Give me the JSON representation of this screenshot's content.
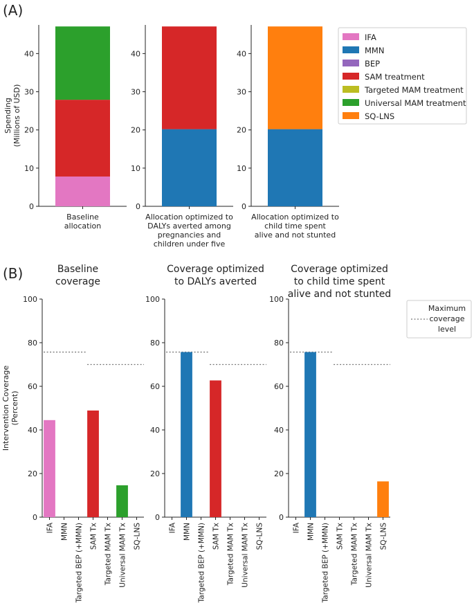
{
  "figure": {
    "panel_a_letter": "(A)",
    "panel_b_letter": "(B)"
  },
  "colors": {
    "IFA": "#e377c2",
    "MMN": "#1f77b4",
    "BEP": "#9467bd",
    "SAM treatment": "#d62728",
    "Targeted MAM treatment": "#bcbd22",
    "Universal MAM treatment": "#2ca02c",
    "SQ-LNS": "#ff7f0e"
  },
  "chart_data": [
    {
      "type": "bar",
      "stacked": true,
      "panel": "A",
      "ylabel": [
        "Spending",
        "(Millions of USD)"
      ],
      "ylim": [
        0,
        47.5
      ],
      "yticks": [
        0,
        10,
        20,
        30,
        40
      ],
      "legend": [
        "IFA",
        "MMN",
        "BEP",
        "SAM treatment",
        "Targeted MAM treatment",
        "Universal MAM treatment",
        "SQ-LNS"
      ],
      "legend_position": "right",
      "subplots": [
        {
          "category_lines": [
            "Baseline",
            "allocation"
          ],
          "segments": [
            {
              "name": "IFA",
              "value": 7.8
            },
            {
              "name": "SAM treatment",
              "value": 20.1
            },
            {
              "name": "Universal MAM treatment",
              "value": 19.2
            }
          ]
        },
        {
          "category_lines": [
            "Allocation optimized to",
            "DALYs averted among",
            "pregnancies and",
            "children under five"
          ],
          "segments": [
            {
              "name": "MMN",
              "value": 20.2
            },
            {
              "name": "SAM treatment",
              "value": 26.9
            }
          ]
        },
        {
          "category_lines": [
            "Allocation optimized to",
            "child time spent",
            "alive and not stunted"
          ],
          "segments": [
            {
              "name": "MMN",
              "value": 20.2
            },
            {
              "name": "SQ-LNS",
              "value": 26.9
            }
          ]
        }
      ]
    },
    {
      "type": "bar",
      "panel": "B",
      "ylabel": [
        "Intervention Coverage",
        "(Percent)"
      ],
      "ylim": [
        0,
        100
      ],
      "yticks": [
        0,
        20,
        40,
        60,
        80,
        100
      ],
      "categories": [
        "IFA",
        "MMN",
        "Targeted BEP (+MMN)",
        "SAM Tx",
        "Targeted MAM Tx",
        "Universal MAM Tx",
        "SQ-LNS"
      ],
      "bar_colors": [
        "IFA",
        "MMN",
        "BEP",
        "SAM treatment",
        "Targeted MAM treatment",
        "Universal MAM treatment",
        "SQ-LNS"
      ],
      "max_coverage": {
        "legend_label": [
          "Maximum",
          "coverage",
          "level"
        ],
        "lines": [
          {
            "from": 0,
            "to": 2,
            "value": 75.7
          },
          {
            "from": 3,
            "to": 6,
            "value": 70
          }
        ]
      },
      "subplots": [
        {
          "title_lines": [
            "Baseline",
            "coverage"
          ],
          "values": [
            44.5,
            0,
            0,
            48.9,
            0,
            14.6,
            0
          ]
        },
        {
          "title_lines": [
            "Coverage optimized",
            "to DALYs averted"
          ],
          "values": [
            0,
            75.7,
            0,
            62.7,
            0,
            0,
            0
          ]
        },
        {
          "title_lines": [
            "Coverage optimized",
            "to child time spent",
            "alive and not stunted"
          ],
          "values": [
            0,
            75.7,
            0,
            0,
            0,
            0,
            16.4
          ]
        }
      ]
    }
  ]
}
